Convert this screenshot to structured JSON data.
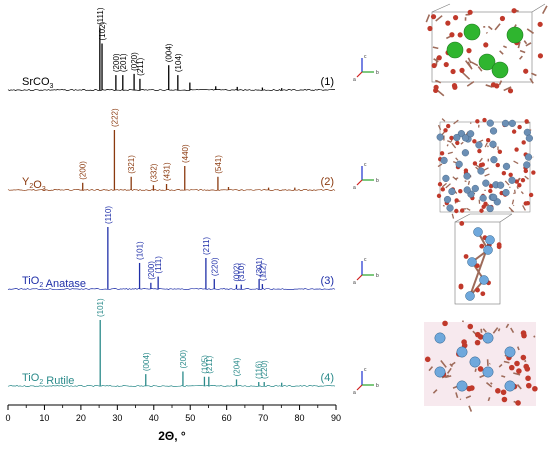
{
  "chart_data": {
    "type": "line",
    "xlabel": "2Θ, °",
    "xlim": [
      0,
      90
    ],
    "xticks": [
      0,
      10,
      20,
      30,
      40,
      50,
      60,
      70,
      80,
      90
    ],
    "grid": false,
    "panels": [
      {
        "name": "SrCO",
        "name_sub": "3",
        "name_suffix": "",
        "index_label": "(1)",
        "color": "#000000",
        "peaks": [
          {
            "x": 25.2,
            "y": 100,
            "label": "(111)"
          },
          {
            "x": 25.8,
            "y": 75,
            "label": "(102)"
          },
          {
            "x": 29.6,
            "y": 24,
            "label": "(200)"
          },
          {
            "x": 31.5,
            "y": 24,
            "label": "(201)"
          },
          {
            "x": 34.6,
            "y": 26,
            "label": "(020)"
          },
          {
            "x": 36.2,
            "y": 18,
            "label": "(211)"
          },
          {
            "x": 44.1,
            "y": 40,
            "label": "(004)"
          },
          {
            "x": 46.6,
            "y": 24,
            "label": "(104)"
          },
          {
            "x": 49.9,
            "y": 12,
            "label": ""
          },
          {
            "x": 57.0,
            "y": 6,
            "label": ""
          },
          {
            "x": 62.9,
            "y": 5,
            "label": ""
          },
          {
            "x": 69.8,
            "y": 4,
            "label": ""
          },
          {
            "x": 75.1,
            "y": 3,
            "label": ""
          }
        ]
      },
      {
        "name": "Y",
        "name_sub": "2",
        "name_mid": "O",
        "name_sub2": "3",
        "name_suffix": "",
        "index_label": "(2)",
        "color": "#8b3a0f",
        "peaks": [
          {
            "x": 20.5,
            "y": 12,
            "label": "(200)"
          },
          {
            "x": 29.2,
            "y": 100,
            "label": "(222)"
          },
          {
            "x": 33.8,
            "y": 22,
            "label": "(321)"
          },
          {
            "x": 39.9,
            "y": 8,
            "label": "(332)"
          },
          {
            "x": 43.5,
            "y": 10,
            "label": "(431)"
          },
          {
            "x": 48.5,
            "y": 40,
            "label": "(440)"
          },
          {
            "x": 57.6,
            "y": 22,
            "label": "(541)"
          },
          {
            "x": 60.5,
            "y": 5,
            "label": ""
          },
          {
            "x": 71.5,
            "y": 4,
            "label": ""
          },
          {
            "x": 78.7,
            "y": 4,
            "label": ""
          }
        ]
      },
      {
        "name": "TiO",
        "name_sub": "2",
        "name_suffix": " Anatase",
        "index_label": "(3)",
        "color": "#1f2fa8",
        "peaks": [
          {
            "x": 27.4,
            "y": 100,
            "label": "(110)"
          },
          {
            "x": 36.1,
            "y": 42,
            "label": "(101)"
          },
          {
            "x": 39.2,
            "y": 10,
            "label": "(200)"
          },
          {
            "x": 41.2,
            "y": 20,
            "label": "(111)"
          },
          {
            "x": 54.3,
            "y": 50,
            "label": "(211)"
          },
          {
            "x": 56.6,
            "y": 16,
            "label": "(220)"
          },
          {
            "x": 62.7,
            "y": 7,
            "label": "(002)"
          },
          {
            "x": 64.0,
            "y": 7,
            "label": "(310)"
          },
          {
            "x": 68.9,
            "y": 16,
            "label": "(301)"
          },
          {
            "x": 69.8,
            "y": 8,
            "label": "(112)"
          }
        ]
      },
      {
        "name": "TiO",
        "name_sub": "2",
        "name_suffix": " Rutile",
        "index_label": "(4)",
        "color": "#2a8a8a",
        "peaks": [
          {
            "x": 25.3,
            "y": 100,
            "label": "(101)"
          },
          {
            "x": 37.8,
            "y": 18,
            "label": "(004)"
          },
          {
            "x": 48.0,
            "y": 22,
            "label": "(200)"
          },
          {
            "x": 53.9,
            "y": 14,
            "label": "(105)"
          },
          {
            "x": 55.1,
            "y": 14,
            "label": "(211)"
          },
          {
            "x": 62.7,
            "y": 10,
            "label": "(204)"
          },
          {
            "x": 68.8,
            "y": 6,
            "label": "(116)"
          },
          {
            "x": 70.3,
            "y": 6,
            "label": "(220)"
          },
          {
            "x": 75.1,
            "y": 5,
            "label": ""
          }
        ]
      }
    ]
  },
  "axis_icon": {
    "up_label": "c",
    "right_label": "b",
    "diag_label": "a"
  },
  "colors": {
    "sr_atom": "#2fb52f",
    "o_atom": "#c0392b",
    "c_atom": "#8d6e63",
    "y_atom": "#6b8fb5",
    "ti_atom": "#6fa8dc",
    "bond": "#9e6b5a",
    "cell_edge": "#777777"
  }
}
